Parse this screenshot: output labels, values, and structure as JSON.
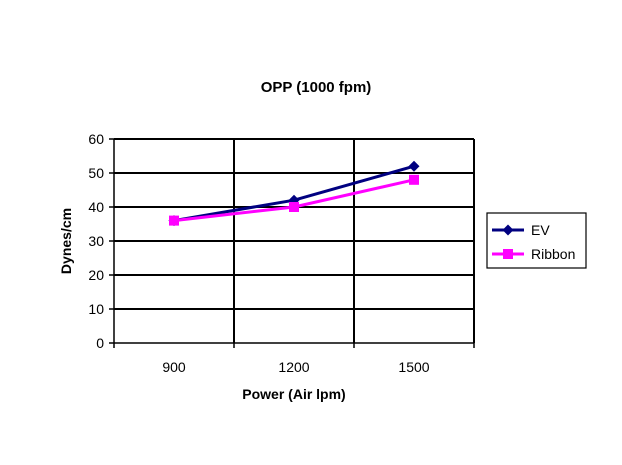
{
  "chart_data": {
    "type": "line",
    "title": "OPP (1000 fpm)",
    "xlabel": "Power (Air lpm)",
    "ylabel": "Dynes/cm",
    "categories": [
      "900",
      "1200",
      "1500"
    ],
    "ylim": [
      0,
      60
    ],
    "yticks": [
      0,
      10,
      20,
      30,
      40,
      50,
      60
    ],
    "grid": true,
    "legend_position": "right",
    "series": [
      {
        "name": "EV",
        "values": [
          36,
          42,
          52
        ],
        "color": "#000080",
        "marker": "diamond"
      },
      {
        "name": "Ribbon",
        "values": [
          36,
          40,
          48
        ],
        "color": "#ff00ff",
        "marker": "square"
      }
    ]
  }
}
